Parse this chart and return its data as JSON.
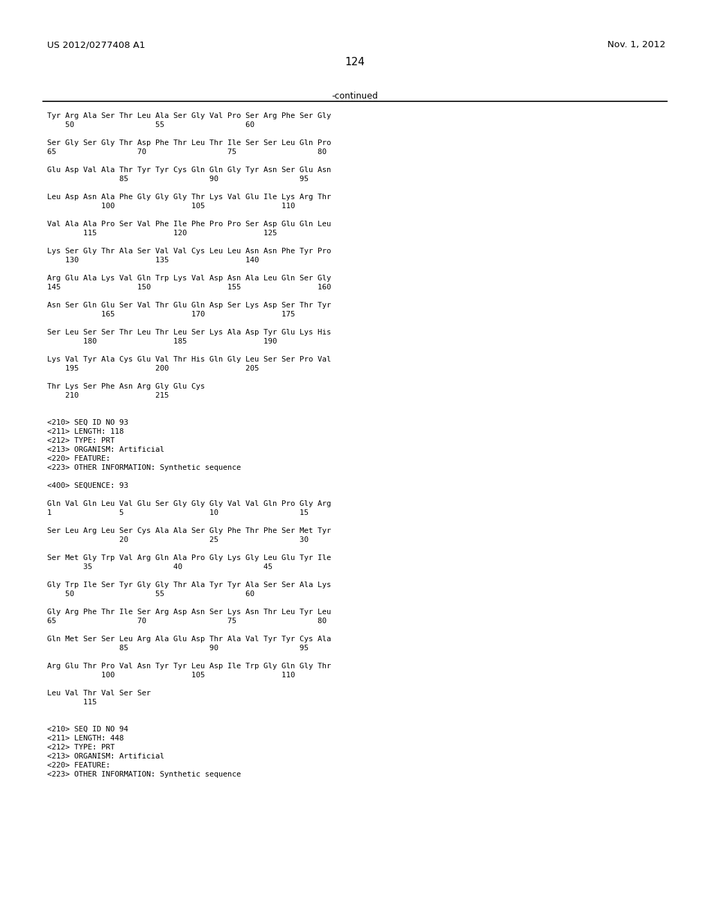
{
  "header_left": "US 2012/0277408 A1",
  "header_right": "Nov. 1, 2012",
  "page_number": "124",
  "continued_text": "-continued",
  "background_color": "#ffffff",
  "text_color": "#000000",
  "content_lines": [
    "Tyr Arg Ala Ser Thr Leu Ala Ser Gly Val Pro Ser Arg Phe Ser Gly",
    "    50                  55                  60",
    "",
    "Ser Gly Ser Gly Thr Asp Phe Thr Leu Thr Ile Ser Ser Leu Gln Pro",
    "65                  70                  75                  80",
    "",
    "Glu Asp Val Ala Thr Tyr Tyr Cys Gln Gln Gly Tyr Asn Ser Glu Asn",
    "                85                  90                  95",
    "",
    "Leu Asp Asn Ala Phe Gly Gly Gly Thr Lys Val Glu Ile Lys Arg Thr",
    "            100                 105                 110",
    "",
    "Val Ala Ala Pro Ser Val Phe Ile Phe Pro Pro Ser Asp Glu Gln Leu",
    "        115                 120                 125",
    "",
    "Lys Ser Gly Thr Ala Ser Val Val Cys Leu Leu Asn Asn Phe Tyr Pro",
    "    130                 135                 140",
    "",
    "Arg Glu Ala Lys Val Gln Trp Lys Val Asp Asn Ala Leu Gln Ser Gly",
    "145                 150                 155                 160",
    "",
    "Asn Ser Gln Glu Ser Val Thr Glu Gln Asp Ser Lys Asp Ser Thr Tyr",
    "            165                 170                 175",
    "",
    "Ser Leu Ser Ser Thr Leu Thr Leu Ser Lys Ala Asp Tyr Glu Lys His",
    "        180                 185                 190",
    "",
    "Lys Val Tyr Ala Cys Glu Val Thr His Gln Gly Leu Ser Ser Pro Val",
    "    195                 200                 205",
    "",
    "Thr Lys Ser Phe Asn Arg Gly Glu Cys",
    "    210                 215",
    "",
    "",
    "<210> SEQ ID NO 93",
    "<211> LENGTH: 118",
    "<212> TYPE: PRT",
    "<213> ORGANISM: Artificial",
    "<220> FEATURE:",
    "<223> OTHER INFORMATION: Synthetic sequence",
    "",
    "<400> SEQUENCE: 93",
    "",
    "Gln Val Gln Leu Val Glu Ser Gly Gly Gly Val Val Gln Pro Gly Arg",
    "1               5                   10                  15",
    "",
    "Ser Leu Arg Leu Ser Cys Ala Ala Ser Gly Phe Thr Phe Ser Met Tyr",
    "                20                  25                  30",
    "",
    "Ser Met Gly Trp Val Arg Gln Ala Pro Gly Lys Gly Leu Glu Tyr Ile",
    "        35                  40                  45",
    "",
    "Gly Trp Ile Ser Tyr Gly Gly Thr Ala Tyr Tyr Ala Ser Ser Ala Lys",
    "    50                  55                  60",
    "",
    "Gly Arg Phe Thr Ile Ser Arg Asp Asn Ser Lys Asn Thr Leu Tyr Leu",
    "65                  70                  75                  80",
    "",
    "Gln Met Ser Ser Leu Arg Ala Glu Asp Thr Ala Val Tyr Tyr Cys Ala",
    "                85                  90                  95",
    "",
    "Arg Glu Thr Pro Val Asn Tyr Tyr Leu Asp Ile Trp Gly Gln Gly Thr",
    "            100                 105                 110",
    "",
    "Leu Val Thr Val Ser Ser",
    "        115",
    "",
    "",
    "<210> SEQ ID NO 94",
    "<211> LENGTH: 448",
    "<212> TYPE: PRT",
    "<213> ORGANISM: Artificial",
    "<220> FEATURE:",
    "<223> OTHER INFORMATION: Synthetic sequence"
  ]
}
